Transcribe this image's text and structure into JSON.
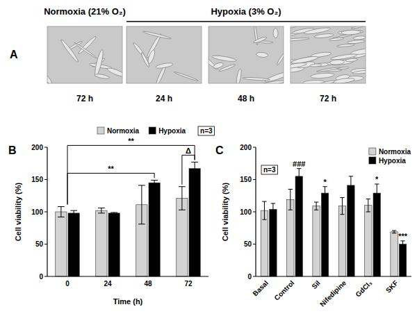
{
  "figure": {
    "label": "A",
    "groups": [
      {
        "label": "Normoxia (21% O₂)",
        "captions": [
          "72 h"
        ]
      },
      {
        "label": "Hypoxia (3% O₂)",
        "captions": [
          "24 h",
          "48 h",
          "72 h"
        ]
      }
    ]
  },
  "chart_data": [
    {
      "type": "bar",
      "title": "B",
      "xlabel": "Time (h)",
      "ylabel": "Cell viability (%)",
      "categories": [
        "0",
        "24",
        "48",
        "72"
      ],
      "series": [
        {
          "name": "Normoxia",
          "color": "#d3d3d3",
          "values": [
            100,
            102,
            111,
            121
          ],
          "errors": [
            8,
            4,
            30,
            18
          ]
        },
        {
          "name": "Hypoxia",
          "color": "#000000",
          "values": [
            98,
            98,
            145,
            167
          ],
          "errors": [
            4,
            1,
            4,
            10
          ]
        }
      ],
      "ylim": [
        0,
        200
      ],
      "yticks": [
        0,
        50,
        100,
        150,
        200
      ],
      "grid": false,
      "legend": "top",
      "annotations": [
        {
          "text": "**",
          "from": {
            "category": "0"
          },
          "to": {
            "category": "72",
            "series": "Hypoxia"
          }
        },
        {
          "text": "**",
          "from": {
            "category": "0"
          },
          "to": {
            "category": "48",
            "series": "Hypoxia"
          }
        },
        {
          "text": "Δ",
          "from": {
            "category": "72",
            "series": "Normoxia"
          },
          "to": {
            "category": "72",
            "series": "Hypoxia"
          }
        },
        {
          "text": "n=3"
        }
      ]
    },
    {
      "type": "bar",
      "title": "C",
      "ylabel": "Cell viability (%)",
      "categories": [
        "Basal",
        "Control",
        "Sil",
        "Nifedipine",
        "GdCl₃",
        "SKF"
      ],
      "series": [
        {
          "name": "Normoxia",
          "color": "#d3d3d3",
          "values": [
            102,
            119,
            109,
            109,
            110,
            69
          ],
          "errors": [
            14,
            16,
            6,
            13,
            10,
            2
          ]
        },
        {
          "name": "Hypoxia",
          "color": "#000000",
          "values": [
            104,
            155,
            129,
            141,
            129,
            50
          ],
          "errors": [
            9,
            12,
            10,
            14,
            14,
            5
          ]
        }
      ],
      "ylim": [
        0,
        200
      ],
      "yticks": [
        0,
        50,
        100,
        150,
        200
      ],
      "grid": false,
      "legend": "upper right",
      "annotations": [
        {
          "text": "###",
          "at": {
            "category": "Control",
            "series": "Hypoxia"
          }
        },
        {
          "text": "*",
          "at": {
            "category": "Sil",
            "series": "Hypoxia"
          }
        },
        {
          "text": "*",
          "at": {
            "category": "GdCl₃",
            "series": "Hypoxia"
          }
        },
        {
          "text": "***",
          "at": {
            "category": "SKF",
            "series": "Hypoxia"
          }
        },
        {
          "text": "n=3"
        }
      ]
    }
  ]
}
